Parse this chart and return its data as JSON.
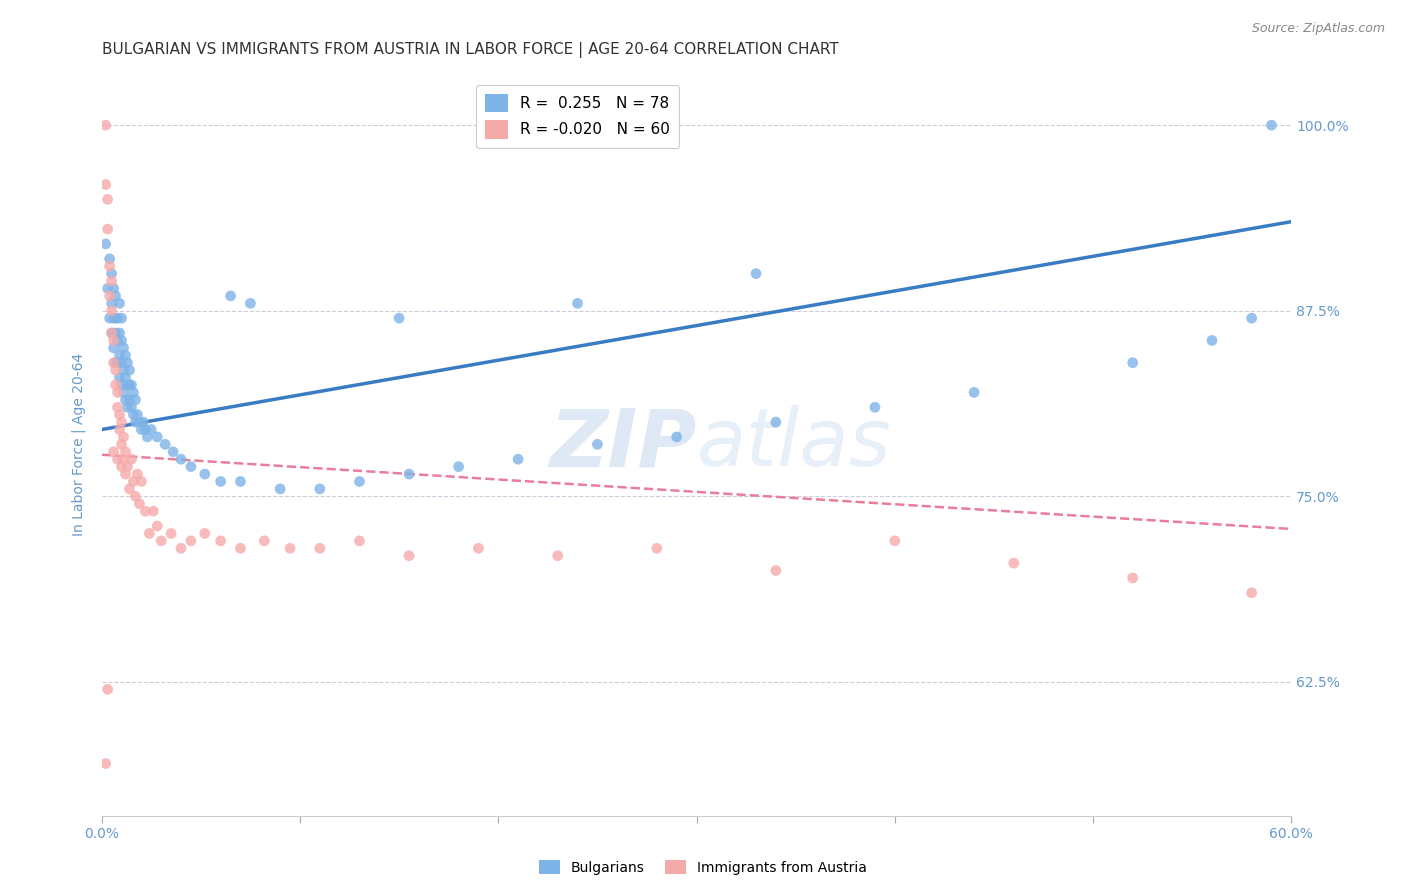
{
  "title": "BULGARIAN VS IMMIGRANTS FROM AUSTRIA IN LABOR FORCE | AGE 20-64 CORRELATION CHART",
  "source": "Source: ZipAtlas.com",
  "ylabel": "In Labor Force | Age 20-64",
  "xlim": [
    0.0,
    0.6
  ],
  "ylim": [
    0.535,
    1.035
  ],
  "xtick_positions": [
    0.0,
    0.1,
    0.2,
    0.3,
    0.4,
    0.5,
    0.6
  ],
  "xticklabels": [
    "0.0%",
    "",
    "",
    "",
    "",
    "",
    "60.0%"
  ],
  "ytick_positions": [
    0.625,
    0.75,
    0.875,
    1.0
  ],
  "ytick_labels": [
    "62.5%",
    "75.0%",
    "87.5%",
    "100.0%"
  ],
  "blue_color": "#7EB3E8",
  "pink_color": "#F5AAAA",
  "blue_line_color": "#3A7CC4",
  "pink_line_color": "#E87E9A",
  "axis_color": "#6699CC",
  "grid_color": "#CCCCDD",
  "background_color": "#FFFFFF",
  "watermark_color": "#C5D8EE",
  "legend_R_blue": "0.255",
  "legend_N_blue": "78",
  "legend_R_pink": "-0.020",
  "legend_N_pink": "60",
  "blue_scatter_x": [
    0.002,
    0.003,
    0.004,
    0.004,
    0.005,
    0.005,
    0.005,
    0.006,
    0.006,
    0.006,
    0.007,
    0.007,
    0.007,
    0.007,
    0.008,
    0.008,
    0.008,
    0.009,
    0.009,
    0.009,
    0.009,
    0.01,
    0.01,
    0.01,
    0.01,
    0.011,
    0.011,
    0.011,
    0.012,
    0.012,
    0.012,
    0.013,
    0.013,
    0.013,
    0.014,
    0.014,
    0.014,
    0.015,
    0.015,
    0.016,
    0.016,
    0.017,
    0.017,
    0.018,
    0.019,
    0.02,
    0.021,
    0.022,
    0.023,
    0.025,
    0.028,
    0.032,
    0.036,
    0.04,
    0.045,
    0.052,
    0.06,
    0.07,
    0.09,
    0.11,
    0.13,
    0.155,
    0.18,
    0.21,
    0.25,
    0.29,
    0.34,
    0.39,
    0.44,
    0.52,
    0.56,
    0.58,
    0.24,
    0.33,
    0.15,
    0.065,
    0.075,
    0.59
  ],
  "blue_scatter_y": [
    0.92,
    0.89,
    0.87,
    0.91,
    0.86,
    0.88,
    0.9,
    0.85,
    0.87,
    0.89,
    0.84,
    0.86,
    0.87,
    0.885,
    0.84,
    0.855,
    0.87,
    0.83,
    0.845,
    0.86,
    0.88,
    0.825,
    0.84,
    0.855,
    0.87,
    0.82,
    0.835,
    0.85,
    0.815,
    0.83,
    0.845,
    0.81,
    0.825,
    0.84,
    0.815,
    0.825,
    0.835,
    0.81,
    0.825,
    0.805,
    0.82,
    0.8,
    0.815,
    0.805,
    0.8,
    0.795,
    0.8,
    0.795,
    0.79,
    0.795,
    0.79,
    0.785,
    0.78,
    0.775,
    0.77,
    0.765,
    0.76,
    0.76,
    0.755,
    0.755,
    0.76,
    0.765,
    0.77,
    0.775,
    0.785,
    0.79,
    0.8,
    0.81,
    0.82,
    0.84,
    0.855,
    0.87,
    0.88,
    0.9,
    0.87,
    0.885,
    0.88,
    1.0
  ],
  "pink_scatter_x": [
    0.002,
    0.002,
    0.003,
    0.003,
    0.004,
    0.004,
    0.005,
    0.005,
    0.005,
    0.006,
    0.006,
    0.007,
    0.007,
    0.008,
    0.008,
    0.009,
    0.009,
    0.01,
    0.01,
    0.011,
    0.011,
    0.012,
    0.013,
    0.014,
    0.015,
    0.016,
    0.017,
    0.018,
    0.019,
    0.02,
    0.022,
    0.024,
    0.026,
    0.028,
    0.03,
    0.035,
    0.04,
    0.045,
    0.052,
    0.06,
    0.07,
    0.082,
    0.095,
    0.11,
    0.13,
    0.155,
    0.19,
    0.23,
    0.28,
    0.34,
    0.4,
    0.46,
    0.52,
    0.58,
    0.006,
    0.008,
    0.01,
    0.012,
    0.003,
    0.002
  ],
  "pink_scatter_y": [
    1.0,
    0.96,
    0.93,
    0.95,
    0.905,
    0.885,
    0.895,
    0.86,
    0.875,
    0.855,
    0.84,
    0.835,
    0.825,
    0.82,
    0.81,
    0.805,
    0.795,
    0.8,
    0.785,
    0.79,
    0.775,
    0.78,
    0.77,
    0.755,
    0.775,
    0.76,
    0.75,
    0.765,
    0.745,
    0.76,
    0.74,
    0.725,
    0.74,
    0.73,
    0.72,
    0.725,
    0.715,
    0.72,
    0.725,
    0.72,
    0.715,
    0.72,
    0.715,
    0.715,
    0.72,
    0.71,
    0.715,
    0.71,
    0.715,
    0.7,
    0.72,
    0.705,
    0.695,
    0.685,
    0.78,
    0.775,
    0.77,
    0.765,
    0.62,
    0.57
  ],
  "blue_trendline_x": [
    0.0,
    0.6
  ],
  "blue_trendline_y": [
    0.795,
    0.935
  ],
  "pink_trendline_x": [
    0.0,
    0.6
  ],
  "pink_trendline_y": [
    0.778,
    0.728
  ],
  "title_fontsize": 11,
  "axis_label_fontsize": 10,
  "tick_fontsize": 10,
  "legend_fontsize": 11
}
